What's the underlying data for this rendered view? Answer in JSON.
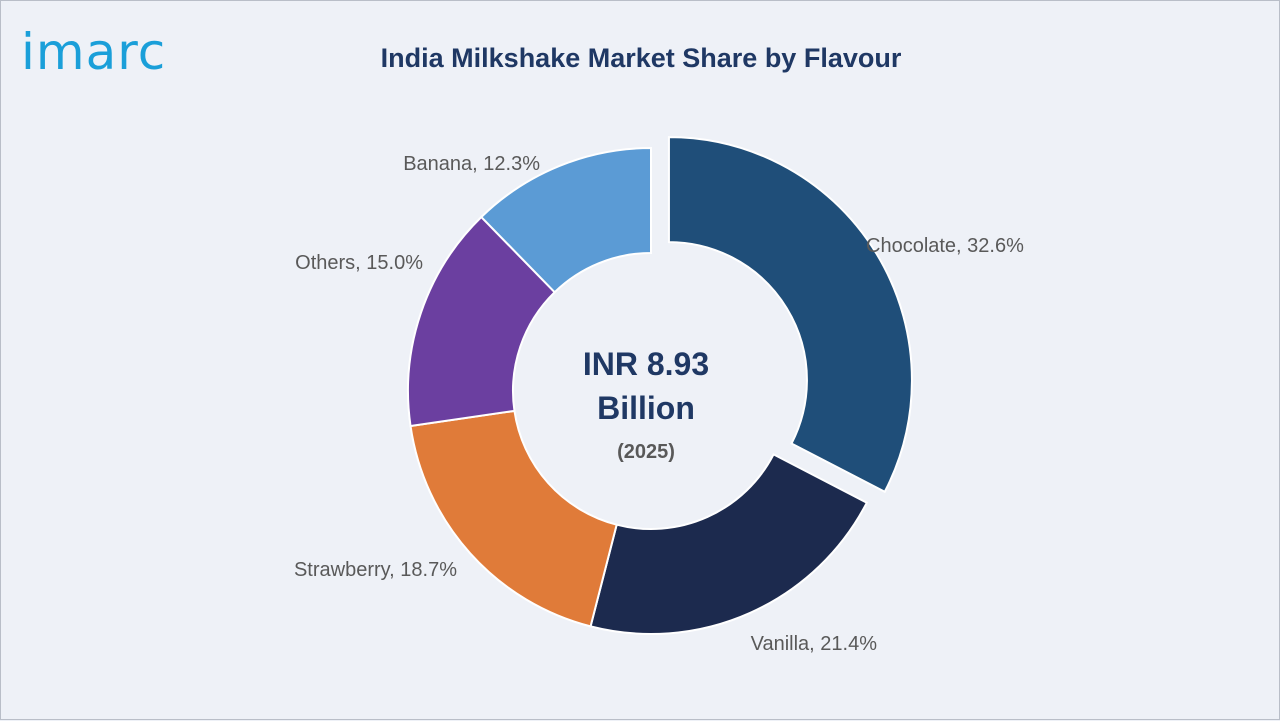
{
  "logo": "imarc",
  "chart_data": {
    "type": "pie",
    "title": "India Milkshake Market Share by Flavour",
    "center": {
      "line1": "INR 8.93",
      "line2": "Billion",
      "line3": "(2025)"
    },
    "slices": [
      {
        "name": "Chocolate",
        "value": 32.6,
        "label": "Chocolate, 32.6%",
        "color": "#1f4e79",
        "exploded": true
      },
      {
        "name": "Vanilla",
        "value": 21.4,
        "label": "Vanilla, 21.4%",
        "color": "#1c2a4e",
        "exploded": false
      },
      {
        "name": "Strawberry",
        "value": 18.7,
        "label": "Strawberry, 18.7%",
        "color": "#e07b39",
        "exploded": false
      },
      {
        "name": "Others",
        "value": 15.0,
        "label": "Others, 15.0%",
        "color": "#6b3fa0",
        "exploded": false
      },
      {
        "name": "Banana",
        "value": 12.3,
        "label": "Banana, 12.3%",
        "color": "#5b9bd5",
        "exploded": false
      }
    ],
    "style": "donut"
  }
}
